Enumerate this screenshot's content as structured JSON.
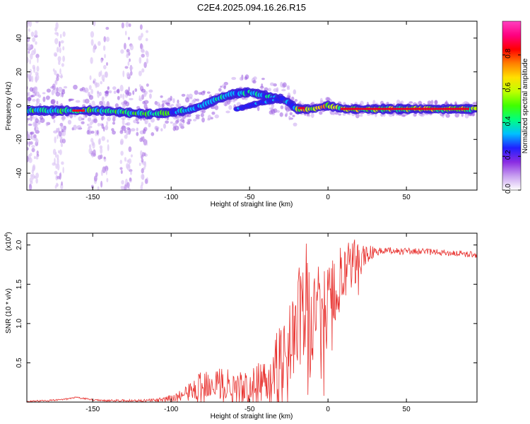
{
  "title": "C2E4.2025.094.16.26.R15",
  "chart_data": [
    {
      "type": "heatmap",
      "xlabel": "Height of straight line (km)",
      "ylabel": "Frequency (Hz)",
      "xlim": [
        -192,
        95
      ],
      "ylim": [
        -50,
        50
      ],
      "xticks": [
        -150,
        -100,
        -50,
        0,
        50
      ],
      "yticks": [
        -40,
        -20,
        0,
        20,
        40
      ],
      "colorbar": {
        "label": "Normalized spectral amplitude",
        "range": [
          0,
          1
        ],
        "ticks": [
          "0.0",
          "0.2",
          "0.4",
          "0.6",
          "0.8"
        ],
        "tick_values": [
          0.0,
          0.2,
          0.4,
          0.6,
          0.8
        ],
        "colors": [
          "#ffffff",
          "#c8a0f0",
          "#8a2be2",
          "#2020ff",
          "#00c0ff",
          "#00ff80",
          "#40ff00",
          "#c0ff00",
          "#ffe000",
          "#ff8000",
          "#ff0000",
          "#ff0080",
          "#ff40c0"
        ]
      },
      "main_trace": {
        "x": [
          -192,
          -175,
          -160,
          -145,
          -130,
          -115,
          -100,
          -90,
          -80,
          -70,
          -60,
          -50,
          -40,
          -30,
          -25,
          -20,
          -15,
          -10,
          -5,
          0,
          5,
          10,
          20,
          40,
          60,
          80,
          95
        ],
        "y": [
          -3,
          -3,
          -3,
          -3,
          -4,
          -5,
          -4,
          -3,
          0,
          4,
          7,
          8,
          6,
          4,
          2,
          -2,
          -2,
          -2,
          -1,
          0,
          -1,
          -2,
          -2,
          -2,
          -2,
          -2,
          -2
        ]
      },
      "secondary_trace": {
        "x": [
          -58,
          -50,
          -42,
          -35,
          -28
        ],
        "y": [
          -2,
          0,
          2,
          3,
          4
        ]
      }
    },
    {
      "type": "line",
      "xlabel": "Height of straight line (km)",
      "ylabel": "SNR (10 * v/v)",
      "multiplier": "(x10",
      "exponent": "4",
      "multiplier_close": ")",
      "xlim": [
        -192,
        95
      ],
      "ylim": [
        0,
        2.15
      ],
      "xticks": [
        -150,
        -100,
        -50,
        0,
        50
      ],
      "yticks": [
        0.5,
        1.0,
        1.5,
        2.0
      ],
      "ytick_labels": [
        "0.5",
        "1.0",
        "1.5",
        "2.0"
      ],
      "color": "#e8312e",
      "envelope": {
        "x": [
          -192,
          -180,
          -170,
          -160,
          -150,
          -140,
          -120,
          -105,
          -100,
          -95,
          -90,
          -85,
          -80,
          -75,
          -70,
          -65,
          -60,
          -55,
          -50,
          -45,
          -40,
          -35,
          -30,
          -25,
          -20,
          -17,
          -14,
          -12,
          -10,
          -8,
          -5,
          0,
          5,
          10,
          15,
          20,
          25,
          30,
          40,
          60,
          80,
          95
        ],
        "y": [
          0.01,
          0.02,
          0.03,
          0.06,
          0.03,
          0.02,
          0.02,
          0.03,
          0.05,
          0.08,
          0.12,
          0.18,
          0.25,
          0.3,
          0.28,
          0.25,
          0.22,
          0.18,
          0.2,
          0.25,
          0.35,
          0.45,
          0.6,
          0.8,
          1.0,
          1.2,
          1.4,
          1.0,
          1.1,
          1.3,
          1.25,
          1.3,
          1.5,
          1.6,
          1.75,
          1.85,
          1.9,
          1.92,
          1.93,
          1.92,
          1.9,
          1.88
        ]
      },
      "noise": {
        "x": [
          -192,
          -150,
          -110,
          -100,
          -90,
          -80,
          -70,
          -60,
          -50,
          -40,
          -30,
          -20,
          -15,
          -10,
          -5,
          0,
          10,
          20,
          30,
          60,
          95
        ],
        "amplitude": [
          0.01,
          0.01,
          0.02,
          0.05,
          0.1,
          0.2,
          0.25,
          0.22,
          0.22,
          0.3,
          0.45,
          0.6,
          0.9,
          0.6,
          0.55,
          0.5,
          0.45,
          0.25,
          0.05,
          0.04,
          0.04
        ]
      }
    }
  ]
}
